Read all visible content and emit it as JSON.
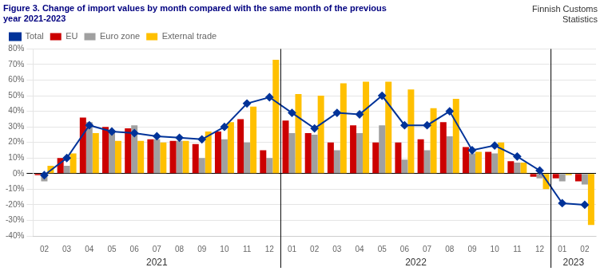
{
  "chart_data": {
    "type": "bar",
    "title": [
      "Figure 3. Change of import values by month compared with the same month of the previous",
      "year 2021-2023"
    ],
    "annotations": [
      {
        "text": "Finnish Customs\nStatistics"
      },
      {
        "text": "2021",
        "from": 0,
        "to": 10
      },
      {
        "text": "2022",
        "from": 11,
        "to": 22
      },
      {
        "text": "2023",
        "from": 23,
        "to": 24
      }
    ],
    "categories": [
      "02",
      "03",
      "04",
      "05",
      "06",
      "07",
      "08",
      "09",
      "10",
      "11",
      "12",
      "01",
      "02",
      "03",
      "04",
      "05",
      "06",
      "07",
      "08",
      "09",
      "10",
      "11",
      "12",
      "01",
      "02"
    ],
    "series": [
      {
        "name": "EU",
        "type": "bar",
        "color": "#CC0000",
        "values": [
          -1,
          10,
          36,
          30,
          29,
          22,
          21,
          19,
          27,
          35,
          15,
          34,
          26,
          20,
          31,
          20,
          20,
          22,
          33,
          17,
          14,
          8,
          -2,
          -3,
          -5
        ]
      },
      {
        "name": "Euro zone",
        "type": "bar",
        "color": "#A0A0A0",
        "values": [
          -5,
          5,
          33,
          27,
          31,
          22,
          21,
          10,
          22,
          20,
          10,
          26,
          25,
          15,
          26,
          31,
          9,
          15,
          24,
          13,
          13,
          7,
          -3,
          -5,
          -7
        ]
      },
      {
        "name": "External trade",
        "type": "bar",
        "color": "#FFC000",
        "values": [
          5,
          13,
          26,
          21,
          21,
          20,
          21,
          27,
          33,
          43,
          73,
          51,
          50,
          58,
          59,
          59,
          54,
          42,
          48,
          14,
          20,
          7,
          -10,
          -1,
          -33
        ]
      },
      {
        "name": "Total",
        "type": "line",
        "color": "#003399",
        "marker": "diamond",
        "line_style": "solid",
        "values": [
          -1,
          10,
          31,
          27,
          26,
          24,
          23,
          22,
          30,
          45,
          49,
          39,
          29,
          39,
          38,
          50,
          31,
          31,
          40,
          15,
          18,
          11,
          2,
          -19,
          -20
        ]
      }
    ],
    "ylim": [
      -40,
      80
    ],
    "yticks": [
      {
        "value": -40,
        "label": "-40%"
      },
      {
        "value": -30,
        "label": "-30%"
      },
      {
        "value": -20,
        "label": "-20%"
      },
      {
        "value": -10,
        "label": "-10%"
      },
      {
        "value": 0,
        "label": "0%"
      },
      {
        "value": 10,
        "label": "10%"
      },
      {
        "value": 20,
        "label": "20%"
      },
      {
        "value": 30,
        "label": "30%"
      },
      {
        "value": 40,
        "label": "40%"
      },
      {
        "value": 50,
        "label": "50%"
      },
      {
        "value": 60,
        "label": "60%"
      },
      {
        "value": 70,
        "label": "70%"
      },
      {
        "value": 80,
        "label": "80%"
      }
    ],
    "grid": true,
    "legend": "upper left"
  }
}
